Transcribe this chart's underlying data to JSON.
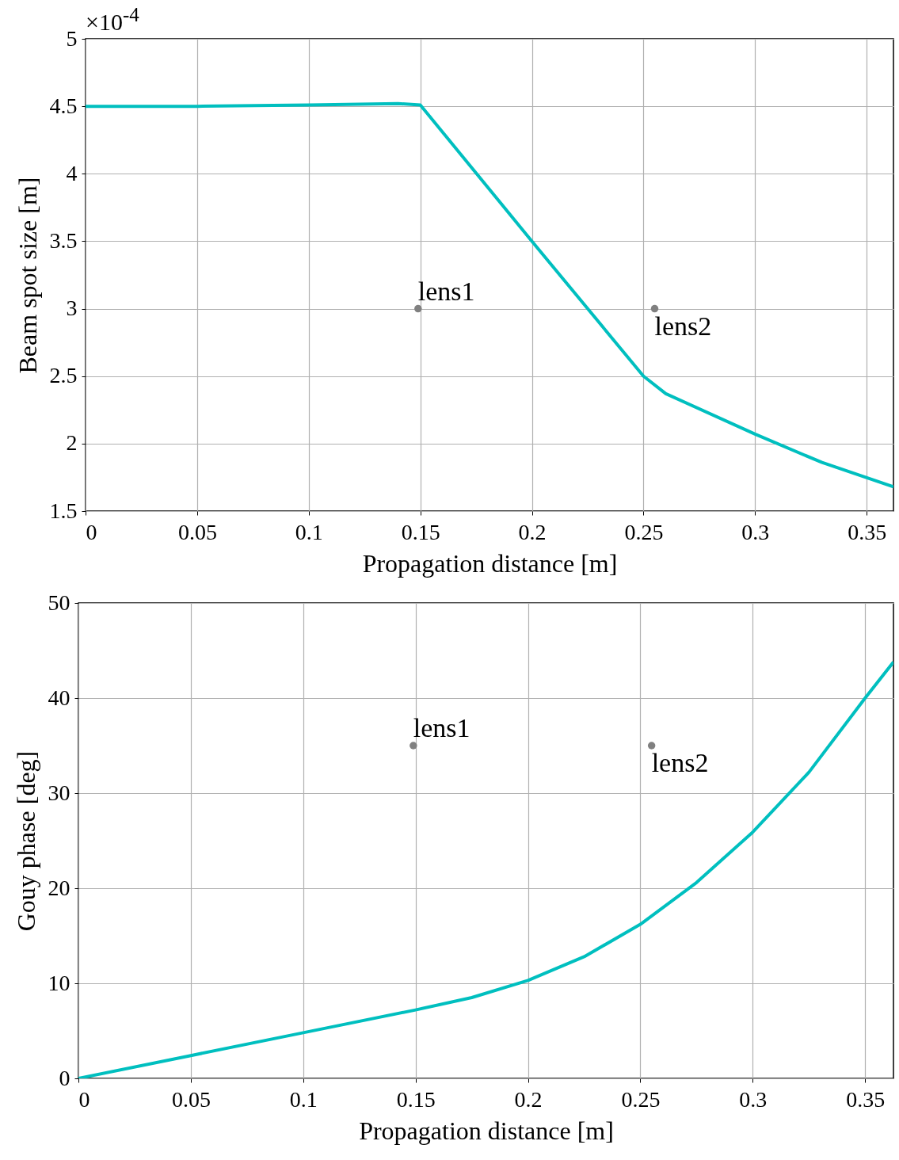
{
  "chart_data": [
    {
      "type": "line",
      "xlabel": "Propagation distance [m]",
      "ylabel": "Beam spot size [m]",
      "xlim": [
        0,
        0.362
      ],
      "ylim": [
        1.5,
        5
      ],
      "xticks": [
        0,
        0.05,
        0.1,
        0.15,
        0.2,
        0.25,
        0.3,
        0.35
      ],
      "yticks": [
        1.5,
        2,
        2.5,
        3,
        3.5,
        4,
        4.5,
        5
      ],
      "grid": true,
      "series": [
        {
          "color": "#00bfbf",
          "x": [
            0,
            0.05,
            0.1,
            0.14,
            0.15,
            0.2,
            0.25,
            0.26,
            0.3,
            0.33,
            0.362
          ],
          "values": [
            4.5,
            4.5,
            4.51,
            4.52,
            4.51,
            3.5,
            2.5,
            2.37,
            2.07,
            1.86,
            1.68
          ]
        },
        {
          "type": "scatter",
          "name": "lens1",
          "marker": "circle",
          "color": "#808080",
          "x": [
            0.149
          ],
          "values": [
            3
          ]
        },
        {
          "type": "scatter",
          "name": "lens2",
          "marker": "circle",
          "color": "#808080",
          "x": [
            0.255
          ],
          "values": [
            3
          ]
        }
      ],
      "annotations": [
        "×10$^{-4}$"
      ]
    },
    {
      "type": "line",
      "xlabel": "Propagation distance [m]",
      "ylabel": "Gouy phase [deg]",
      "xlim": [
        0,
        0.3626
      ],
      "ylim": [
        0,
        50
      ],
      "xticks": [
        0,
        0.05,
        0.1,
        0.15,
        0.2,
        0.25,
        0.3,
        0.35
      ],
      "yticks": [
        0,
        10,
        20,
        30,
        40,
        50
      ],
      "grid": true,
      "series": [
        {
          "color": "#00bfbf",
          "x": [
            0,
            0.05,
            0.1,
            0.15,
            0.175,
            0.2,
            0.225,
            0.25,
            0.275,
            0.3,
            0.325,
            0.35,
            0.3626
          ],
          "values": [
            0,
            2.4,
            4.8,
            7.2,
            8.5,
            10.3,
            12.8,
            16.2,
            20.6,
            25.9,
            32.2,
            40,
            43.8
          ]
        },
        {
          "type": "scatter",
          "name": "lens1",
          "marker": "circle",
          "color": "#808080",
          "x": [
            0.149
          ],
          "values": [
            35
          ]
        },
        {
          "type": "scatter",
          "name": "lens2",
          "marker": "circle",
          "color": "#808080",
          "x": [
            0.255
          ],
          "values": [
            35
          ]
        }
      ]
    }
  ]
}
